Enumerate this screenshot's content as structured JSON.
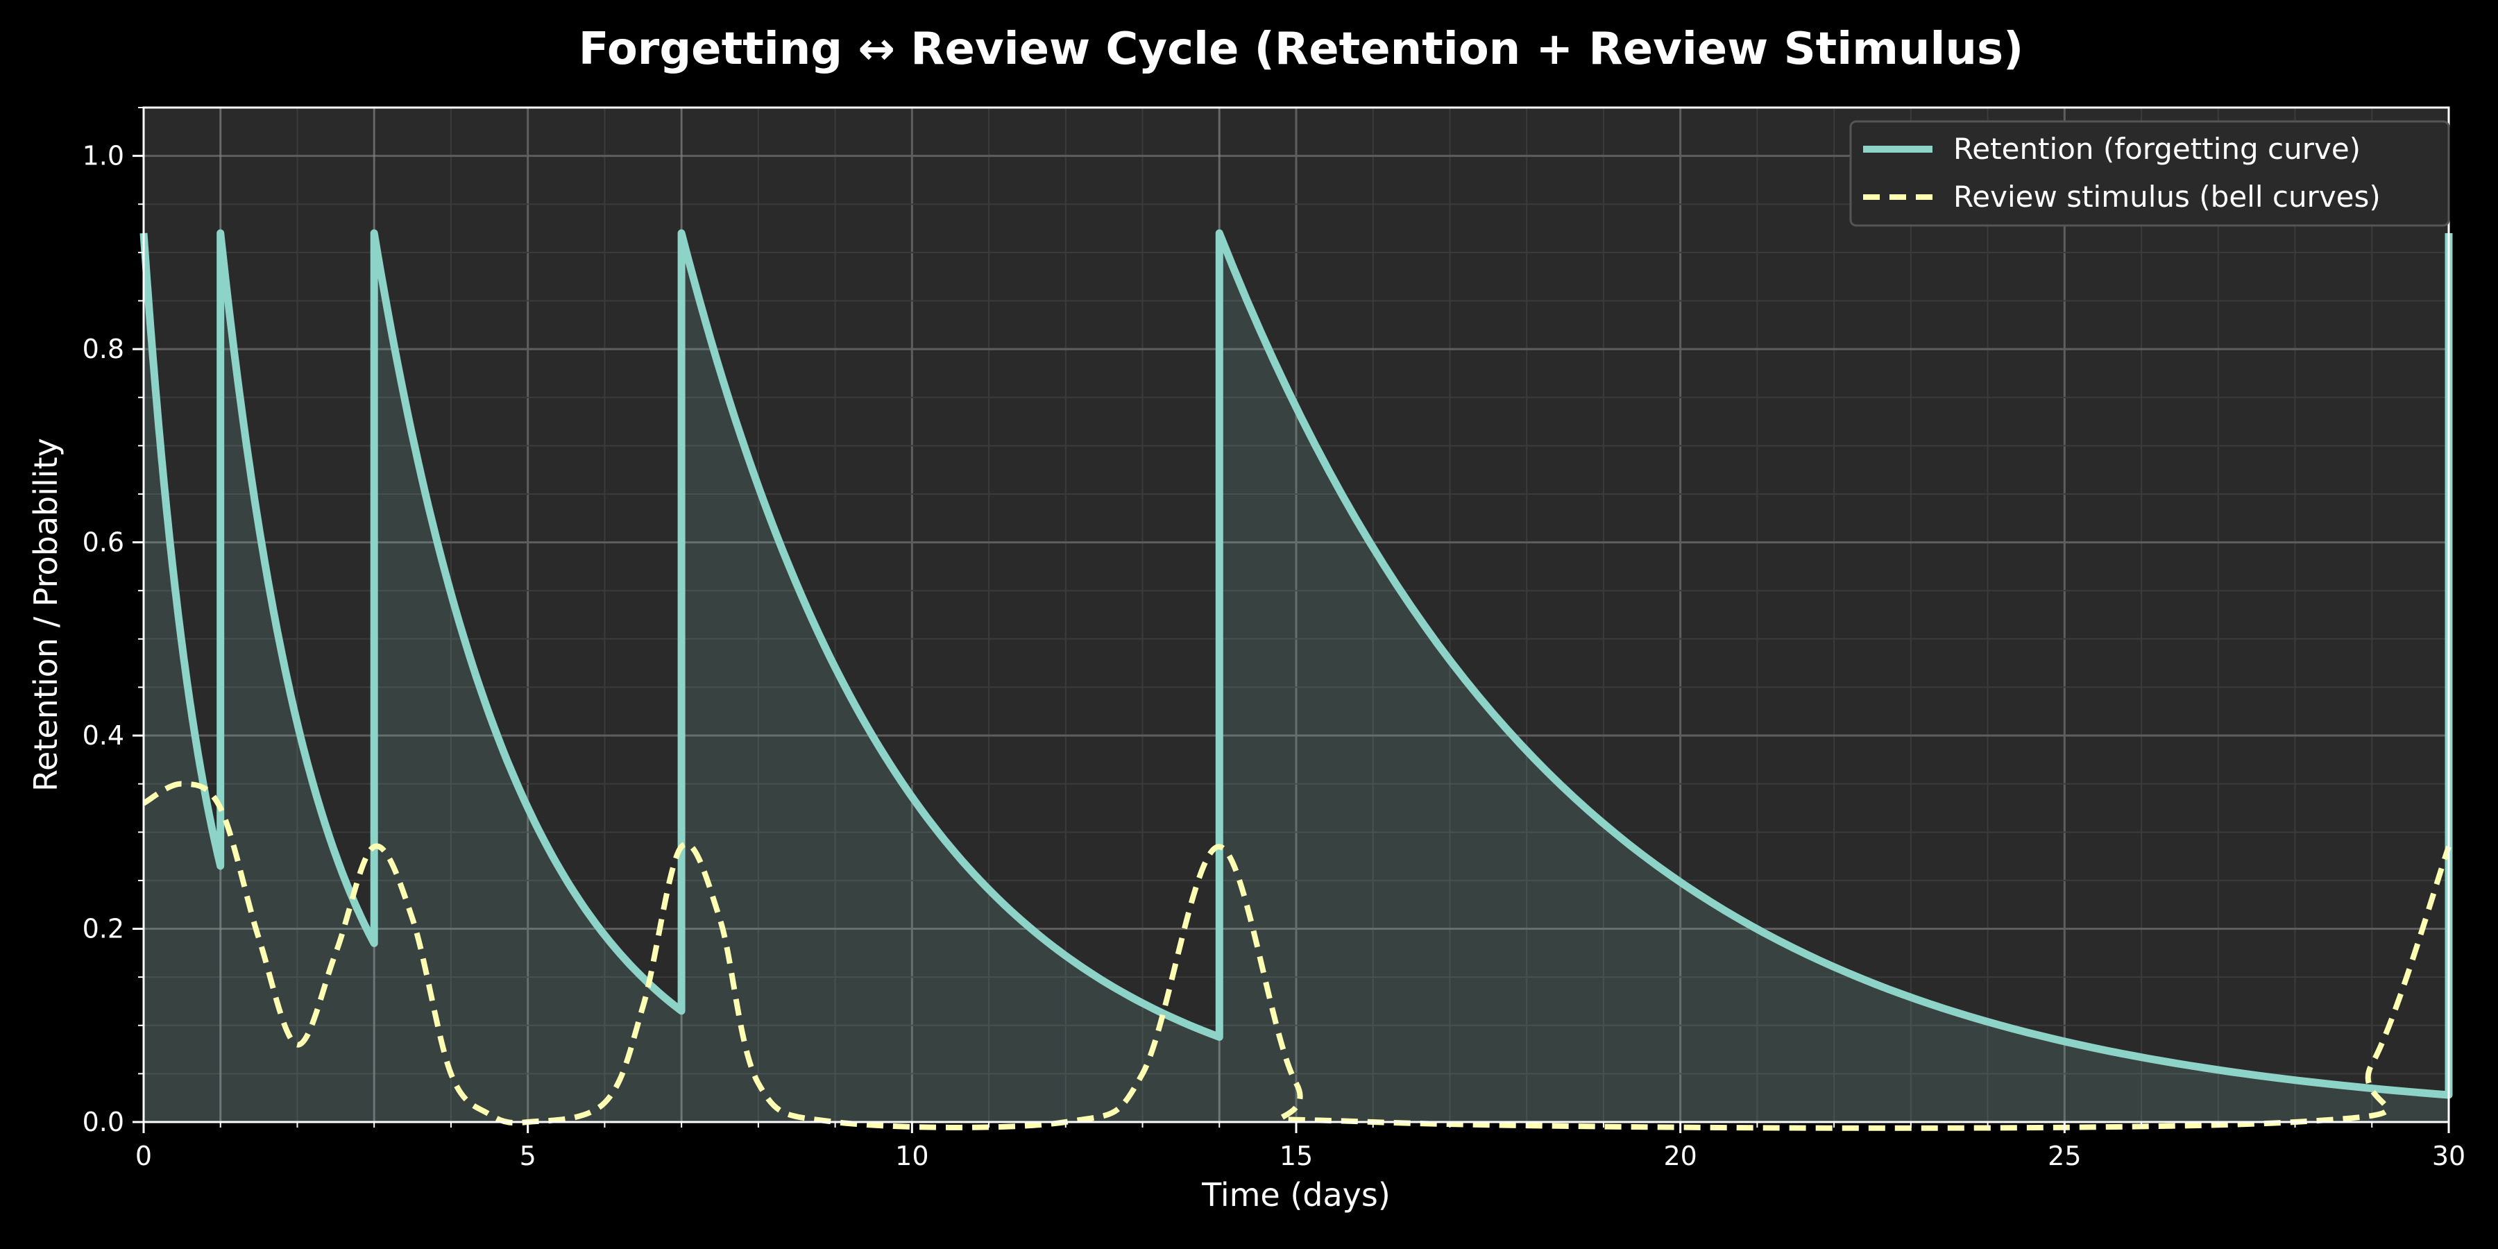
{
  "chart_data": {
    "type": "line",
    "title": "Forgetting ↔ Review Cycle (Retention + Review Stimulus)",
    "xlabel": "Time (days)",
    "ylabel": "Retention / Probability",
    "xlim": [
      0,
      30
    ],
    "ylim": [
      0,
      1.05
    ],
    "xticks": [
      0,
      5,
      10,
      15,
      20,
      25,
      30
    ],
    "yticks": [
      0.0,
      0.2,
      0.4,
      0.6,
      0.8,
      1.0
    ],
    "grid": true,
    "legend_position": "top-right",
    "review_days": [
      0,
      1,
      3,
      7,
      14,
      30
    ],
    "series": [
      {
        "name": "Retention (forgetting curve)",
        "style": "solid",
        "color": "#8dd3c7",
        "fill": true,
        "points": [
          [
            0,
            0.92
          ],
          [
            1,
            0.265
          ],
          [
            1,
            0.92
          ],
          [
            3,
            0.185
          ],
          [
            3,
            0.92
          ],
          [
            7,
            0.115
          ],
          [
            7,
            0.92
          ],
          [
            14,
            0.088
          ],
          [
            14,
            0.92
          ],
          [
            30,
            0.028
          ],
          [
            30,
            0.92
          ]
        ]
      },
      {
        "name": "Review stimulus (bell curves)",
        "style": "dashed",
        "color": "#ffffb3",
        "fill": false,
        "points": [
          [
            0,
            0.33
          ],
          [
            0.5,
            0.35
          ],
          [
            1,
            0.325
          ],
          [
            1.5,
            0.19
          ],
          [
            2,
            0.08
          ],
          [
            2.5,
            0.175
          ],
          [
            3,
            0.285
          ],
          [
            3.5,
            0.21
          ],
          [
            4,
            0.05
          ],
          [
            4.5,
            0.008
          ],
          [
            5,
            0.0
          ],
          [
            6,
            0.02
          ],
          [
            6.5,
            0.12
          ],
          [
            7,
            0.285
          ],
          [
            7.5,
            0.21
          ],
          [
            8,
            0.04
          ],
          [
            9,
            0.0
          ],
          [
            12,
            0.0
          ],
          [
            13,
            0.05
          ],
          [
            14,
            0.285
          ],
          [
            15,
            0.04
          ],
          [
            16,
            0.0
          ],
          [
            28,
            0.0
          ],
          [
            29,
            0.06
          ],
          [
            30,
            0.285
          ]
        ]
      }
    ]
  }
}
